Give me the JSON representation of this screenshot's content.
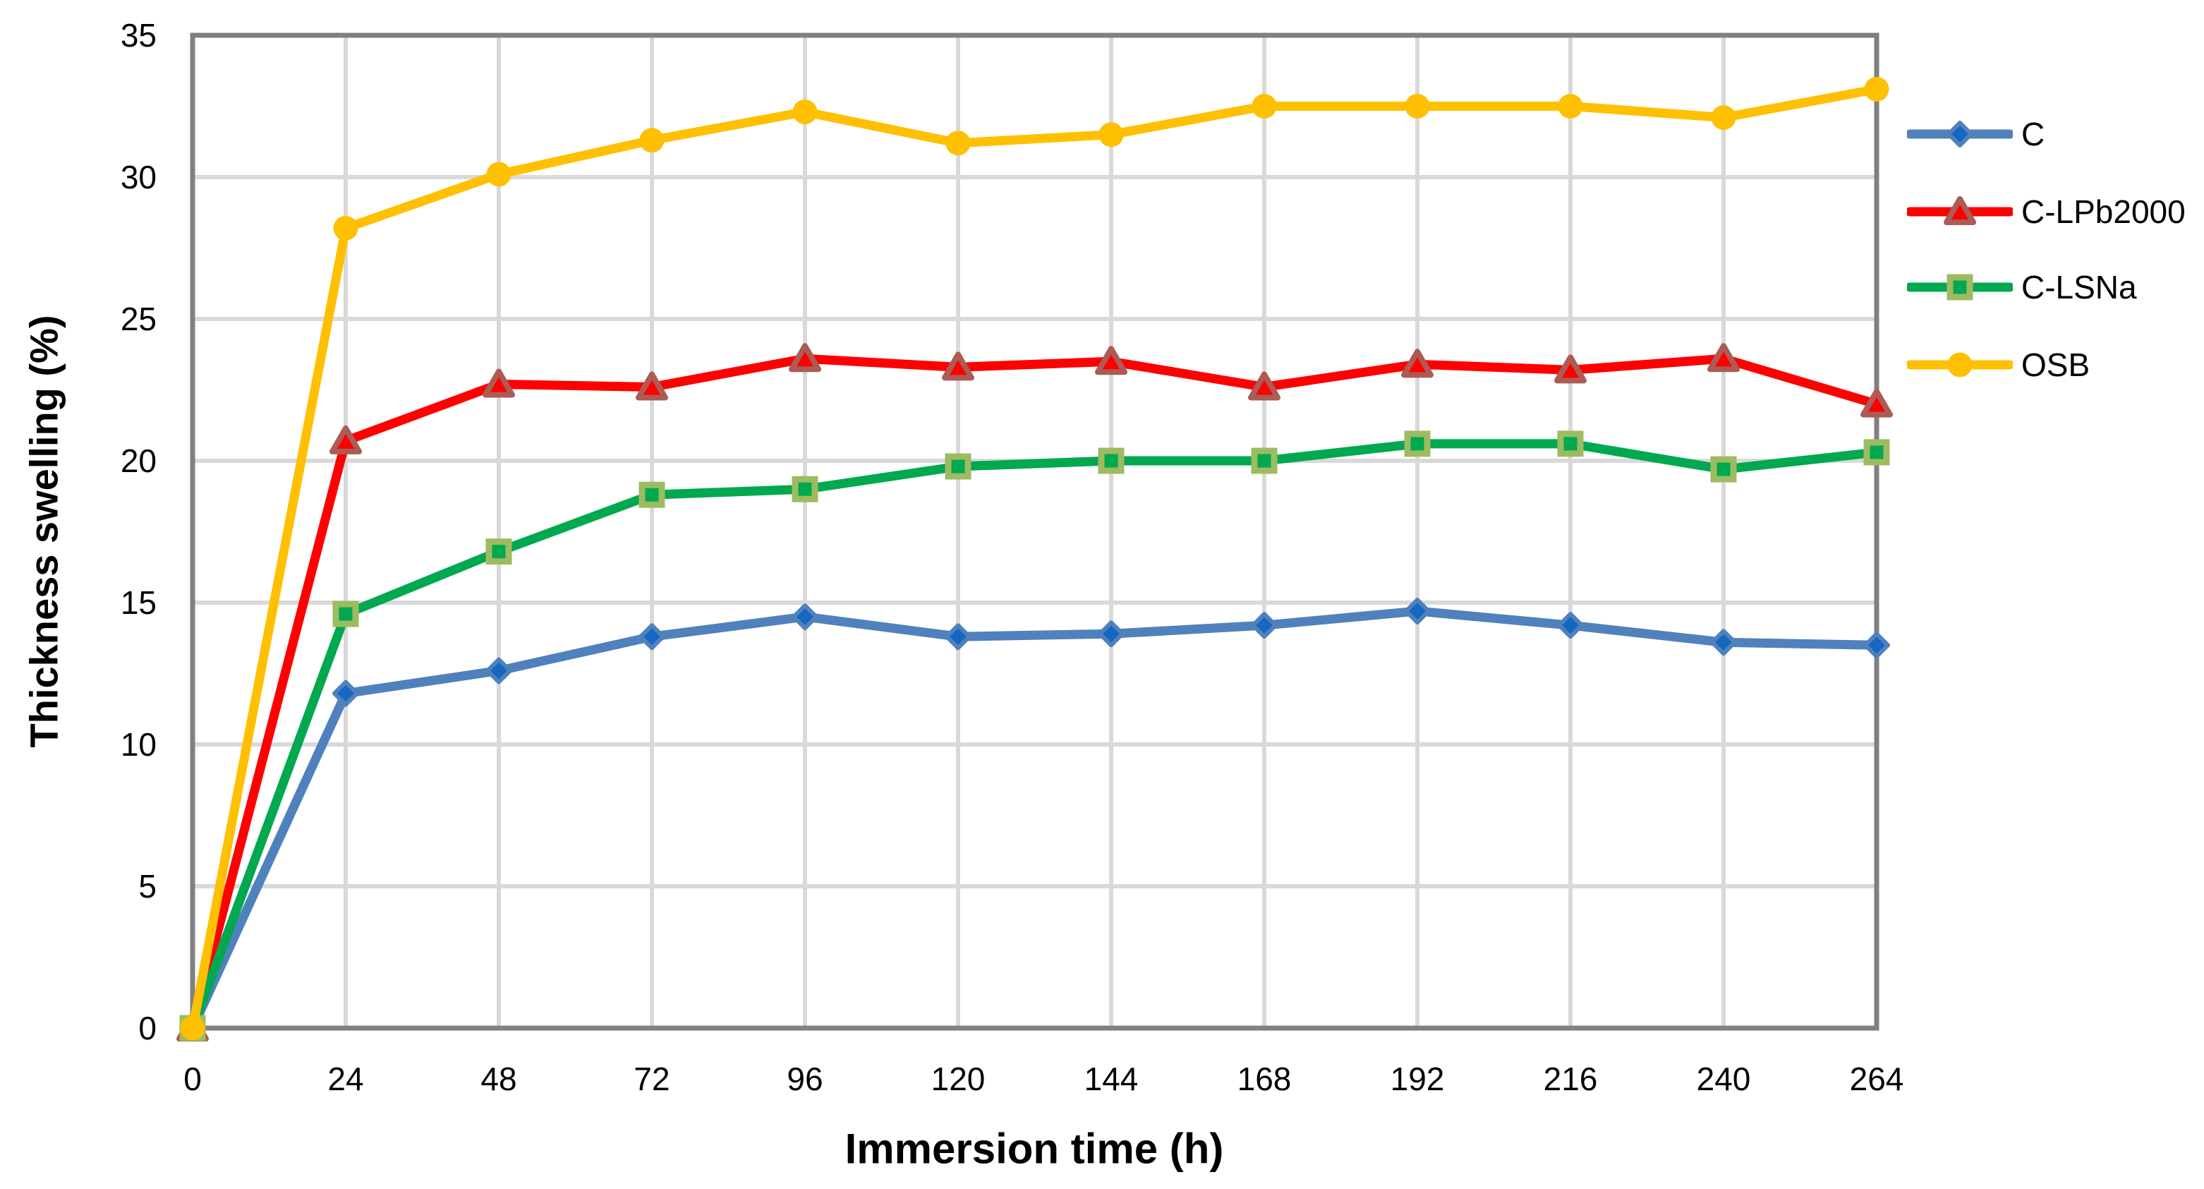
{
  "chart_data": {
    "type": "line",
    "title": "",
    "xlabel": "Immersion time (h)",
    "ylabel": "Thickness swelling (%)",
    "x": [
      0,
      24,
      48,
      72,
      96,
      120,
      144,
      168,
      192,
      216,
      240,
      264
    ],
    "x_ticks": [
      0,
      24,
      48,
      72,
      96,
      120,
      144,
      168,
      192,
      216,
      240,
      264
    ],
    "y_ticks": [
      0,
      5,
      10,
      15,
      20,
      25,
      30,
      35
    ],
    "xlim": [
      0,
      264
    ],
    "ylim": [
      0,
      35
    ],
    "grid": true,
    "legend_position": "right",
    "series": [
      {
        "name": "C",
        "marker": "diamond",
        "line_color": "#4F81BD",
        "marker_fill": "#1567C0",
        "marker_border": "#4F81BD",
        "values": [
          0,
          11.8,
          12.6,
          13.8,
          14.5,
          13.8,
          13.9,
          14.2,
          14.7,
          14.2,
          13.6,
          13.5
        ]
      },
      {
        "name": "C-LPb2000",
        "marker": "triangle",
        "line_color": "#FE0000",
        "marker_fill": "#FE0000",
        "marker_border": "#AC5B55",
        "values": [
          0,
          20.7,
          22.7,
          22.6,
          23.6,
          23.3,
          23.5,
          22.6,
          23.4,
          23.2,
          23.6,
          22.0
        ]
      },
      {
        "name": "C-LSNa",
        "marker": "square",
        "line_color": "#00A850",
        "marker_fill": "#00A850",
        "marker_border": "#9DBB61",
        "values": [
          0,
          14.6,
          16.8,
          18.8,
          19.0,
          19.8,
          20.0,
          20.0,
          20.6,
          20.6,
          19.7,
          20.3
        ]
      },
      {
        "name": "OSB",
        "marker": "circle",
        "line_color": "#FFC001",
        "marker_fill": "#FFC001",
        "marker_border": "#FFC001",
        "values": [
          0,
          28.2,
          30.1,
          31.3,
          32.3,
          31.2,
          31.5,
          32.5,
          32.5,
          32.5,
          32.1,
          33.1
        ]
      }
    ],
    "style": {
      "gridline_color": "#D9D9D9",
      "axis_color": "#808080",
      "tick_label_color": "#000000",
      "plot_background": "#FFFFFF"
    }
  }
}
